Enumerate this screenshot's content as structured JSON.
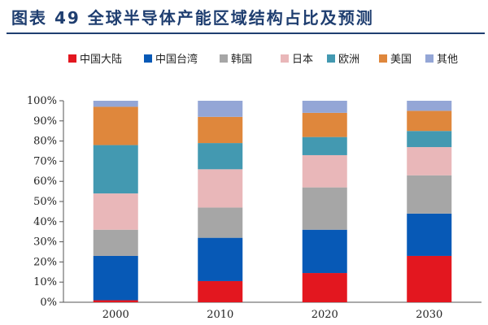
{
  "figure": {
    "title": "图表 49   全球半导体产能区域结构占比及预测"
  },
  "chart_data": {
    "type": "bar",
    "stacked": true,
    "categories": [
      "2000",
      "2010",
      "2020",
      "2030"
    ],
    "ylim": [
      0,
      100
    ],
    "yticks": [
      "0%",
      "10%",
      "20%",
      "30%",
      "40%",
      "50%",
      "60%",
      "70%",
      "80%",
      "90%",
      "100%"
    ],
    "xlabel": "",
    "ylabel": "",
    "grid": false,
    "legend_position": "top",
    "series": [
      {
        "name": "中国大陆",
        "color": "#e3171f",
        "values": [
          1,
          10.5,
          14.5,
          23
        ]
      },
      {
        "name": "中国台湾",
        "color": "#0759b6",
        "values": [
          22,
          21.5,
          21.5,
          21
        ]
      },
      {
        "name": "韩国",
        "color": "#a6a6a6",
        "values": [
          13,
          15,
          21,
          19
        ]
      },
      {
        "name": "日本",
        "color": "#e9b7b9",
        "values": [
          18,
          19,
          16,
          14
        ]
      },
      {
        "name": "欧洲",
        "color": "#4399b1",
        "values": [
          24,
          13,
          9,
          8
        ]
      },
      {
        "name": "美国",
        "color": "#df873c",
        "values": [
          19,
          13,
          12,
          10
        ]
      },
      {
        "name": "其他",
        "color": "#94a6d6",
        "values": [
          3,
          8,
          6,
          5
        ]
      }
    ]
  }
}
